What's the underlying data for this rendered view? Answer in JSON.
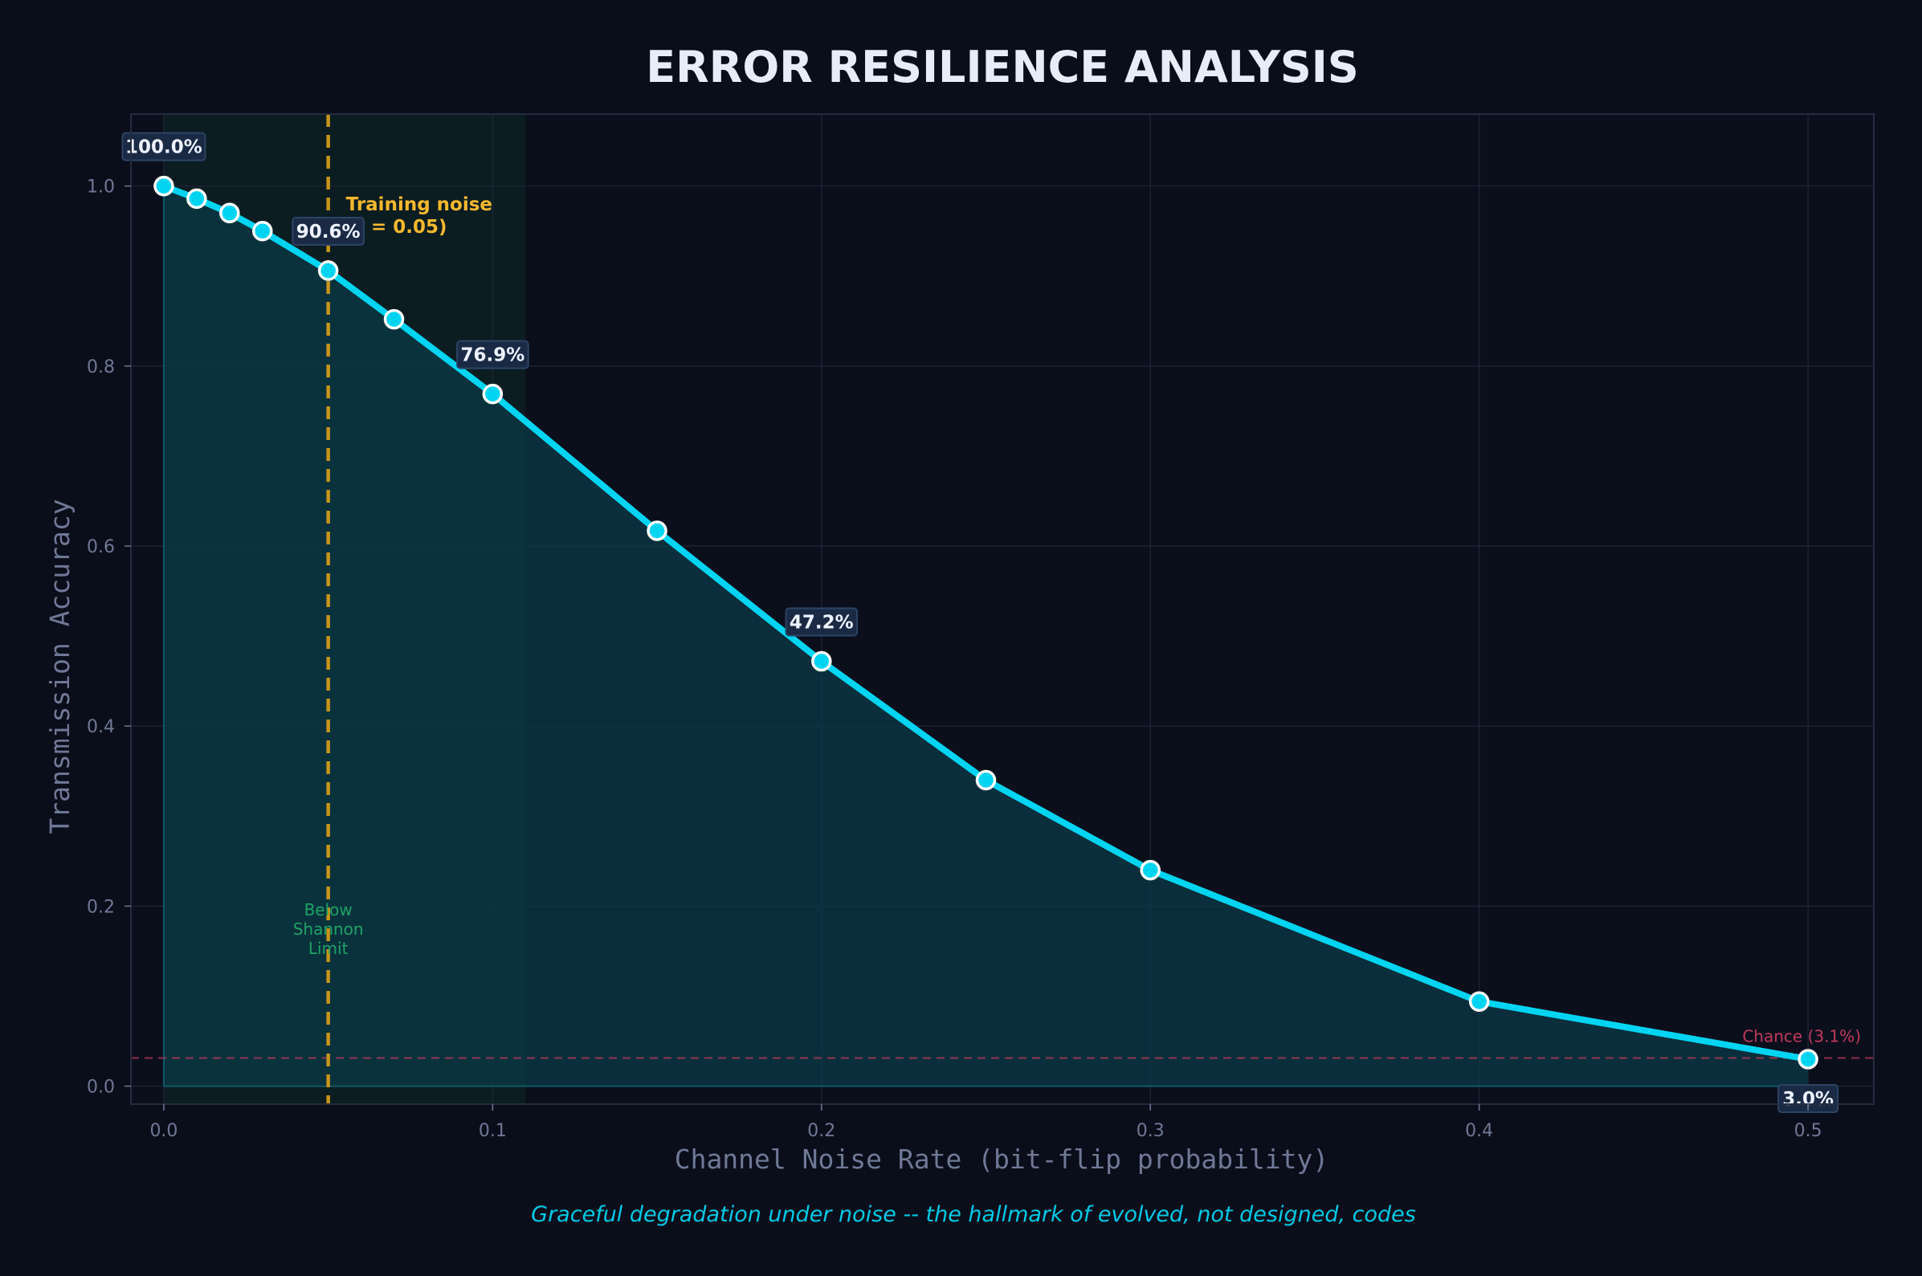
{
  "chart_data": {
    "type": "line",
    "title": "ERROR RESILIENCE ANALYSIS",
    "xlabel": "Channel Noise Rate (bit-flip probability)",
    "ylabel": "Transmission Accuracy",
    "caption": "Graceful degradation under noise -- the hallmark of evolved, not designed, codes",
    "xlim": [
      -0.01,
      0.52
    ],
    "ylim": [
      -0.02,
      1.08
    ],
    "x_ticks": [
      0.0,
      0.1,
      0.2,
      0.3,
      0.4,
      0.5
    ],
    "x_tick_labels": [
      "0.0",
      "0.1",
      "0.2",
      "0.3",
      "0.4",
      "0.5"
    ],
    "y_ticks": [
      0.0,
      0.2,
      0.4,
      0.6,
      0.8,
      1.0
    ],
    "y_tick_labels": [
      "0.0",
      "0.2",
      "0.4",
      "0.6",
      "0.8",
      "1.0"
    ],
    "grid": true,
    "series": [
      {
        "x": [
          0.0,
          0.01,
          0.02,
          0.03,
          0.05,
          0.07,
          0.1,
          0.15,
          0.2,
          0.25,
          0.3,
          0.4,
          0.5
        ],
        "y": [
          1.0,
          0.986,
          0.97,
          0.95,
          0.906,
          0.852,
          0.769,
          0.617,
          0.472,
          0.34,
          0.24,
          0.094,
          0.03
        ]
      }
    ],
    "point_labels": [
      {
        "x": 0.0,
        "y": 1.0,
        "text": "100.0%",
        "position": "above"
      },
      {
        "x": 0.05,
        "y": 0.906,
        "text": "90.6%",
        "position": "above"
      },
      {
        "x": 0.1,
        "y": 0.769,
        "text": "76.9%",
        "position": "above"
      },
      {
        "x": 0.2,
        "y": 0.472,
        "text": "47.2%",
        "position": "above"
      },
      {
        "x": 0.5,
        "y": 0.03,
        "text": "3.0%",
        "position": "below"
      }
    ],
    "training_noise": {
      "x": 0.05,
      "label_line1": "Training noise",
      "label_line2": "(ε = 0.05)"
    },
    "shannon_region": {
      "x_start": 0.0,
      "x_end": 0.11,
      "label_lines": [
        "Below",
        "Shannon",
        "Limit"
      ]
    },
    "chance_line": {
      "y": 0.03125,
      "label": "Chance (3.1%)"
    },
    "colors": {
      "background": "#0a0e1a",
      "plot_background": "#0b0f1c",
      "line": "#00d4f0",
      "fill": "#0a3a48",
      "training_noise": "#c8941a",
      "training_text": "#f5b82e",
      "shannon_text": "#1fa364",
      "chance": "#c0385a",
      "title": "#e8ecf8",
      "axis_text": "#6f7896",
      "caption": "#00c8e6",
      "label_box": "#1a2a44",
      "label_text": "#eef2ff"
    }
  }
}
